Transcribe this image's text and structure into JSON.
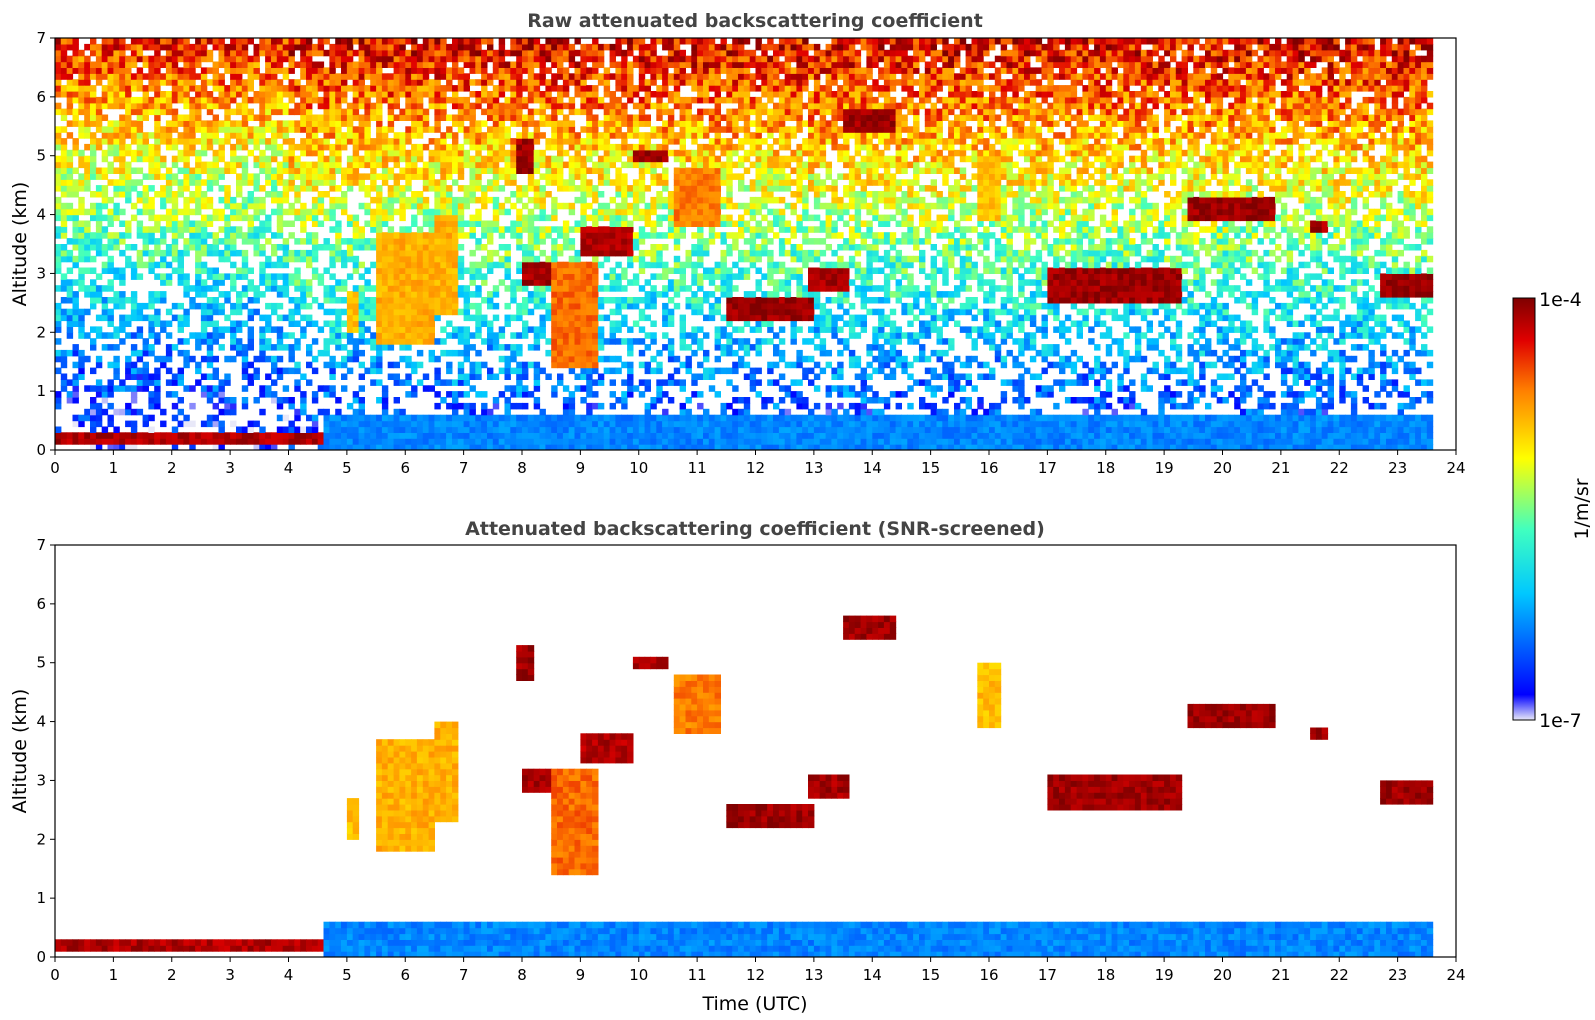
{
  "chart_data": [
    {
      "type": "heatmap",
      "title": "Raw attenuated backscattering coefficient",
      "xlabel": "",
      "ylabel": "Altitude (km)",
      "xlim": [
        0,
        24
      ],
      "ylim": [
        0,
        7
      ],
      "xticks": [
        "0",
        "1",
        "2",
        "3",
        "4",
        "5",
        "6",
        "7",
        "8",
        "9",
        "10",
        "11",
        "12",
        "13",
        "14",
        "15",
        "16",
        "17",
        "18",
        "19",
        "20",
        "21",
        "22",
        "23",
        "24"
      ],
      "yticks": [
        "0",
        "1",
        "2",
        "3",
        "4",
        "5",
        "6",
        "7"
      ],
      "data_end_time": 23.6,
      "features": [
        {
          "name": "surface layer",
          "t0": 0.0,
          "t1": 4.6,
          "alt_bottom": 0.05,
          "alt_top": 0.25,
          "level": 0.95
        },
        {
          "name": "boundary layer",
          "t0": 4.6,
          "t1": 23.6,
          "alt_bottom": 0.0,
          "alt_top": 0.55,
          "level": 0.22
        },
        {
          "name": "cloud",
          "t0": 7.9,
          "t1": 8.2,
          "alt_bottom": 4.7,
          "alt_top": 5.3,
          "level": 0.97
        },
        {
          "name": "cloud",
          "t0": 9.9,
          "t1": 10.5,
          "alt_bottom": 4.9,
          "alt_top": 5.1,
          "level": 0.97
        },
        {
          "name": "cloud",
          "t0": 13.5,
          "t1": 14.4,
          "alt_bottom": 5.4,
          "alt_top": 5.8,
          "level": 0.97
        },
        {
          "name": "cloud",
          "t0": 9.0,
          "t1": 9.9,
          "alt_bottom": 3.3,
          "alt_top": 3.8,
          "level": 0.95
        },
        {
          "name": "cloud",
          "t0": 8.0,
          "t1": 8.5,
          "alt_bottom": 2.8,
          "alt_top": 3.2,
          "level": 0.96
        },
        {
          "name": "cloud",
          "t0": 8.5,
          "t1": 9.3,
          "alt_bottom": 1.4,
          "alt_top": 3.2,
          "level": 0.8
        },
        {
          "name": "cloud",
          "t0": 11.5,
          "t1": 13.0,
          "alt_bottom": 2.2,
          "alt_top": 2.6,
          "level": 0.97
        },
        {
          "name": "cloud",
          "t0": 12.9,
          "t1": 13.6,
          "alt_bottom": 2.7,
          "alt_top": 3.1,
          "level": 0.96
        },
        {
          "name": "cloud",
          "t0": 17.0,
          "t1": 19.3,
          "alt_bottom": 2.5,
          "alt_top": 3.1,
          "level": 0.97
        },
        {
          "name": "cloud",
          "t0": 19.4,
          "t1": 20.9,
          "alt_bottom": 3.9,
          "alt_top": 4.3,
          "level": 0.97
        },
        {
          "name": "cloud",
          "t0": 21.5,
          "t1": 21.8,
          "alt_bottom": 3.7,
          "alt_top": 3.9,
          "level": 0.96
        },
        {
          "name": "cloud",
          "t0": 22.7,
          "t1": 23.6,
          "alt_bottom": 2.6,
          "alt_top": 3.0,
          "level": 0.97
        },
        {
          "name": "aerosol",
          "t0": 5.0,
          "t1": 5.2,
          "alt_bottom": 2.0,
          "alt_top": 2.7,
          "level": 0.7
        },
        {
          "name": "aerosol",
          "t0": 5.5,
          "t1": 6.5,
          "alt_bottom": 1.8,
          "alt_top": 3.7,
          "level": 0.72
        },
        {
          "name": "aerosol",
          "t0": 6.5,
          "t1": 6.9,
          "alt_bottom": 2.3,
          "alt_top": 4.0,
          "level": 0.72
        },
        {
          "name": "aerosol",
          "t0": 10.6,
          "t1": 11.4,
          "alt_bottom": 3.8,
          "alt_top": 4.8,
          "level": 0.78
        },
        {
          "name": "aerosol",
          "t0": 15.8,
          "t1": 16.2,
          "alt_bottom": 3.9,
          "alt_top": 5.0,
          "level": 0.7
        }
      ]
    },
    {
      "type": "heatmap",
      "title": "Attenuated backscattering coefficient (SNR-screened)",
      "xlabel": "Time (UTC)",
      "ylabel": "Altitude (km)",
      "xlim": [
        0,
        24
      ],
      "ylim": [
        0,
        7
      ],
      "xticks": [
        "0",
        "1",
        "2",
        "3",
        "4",
        "5",
        "6",
        "7",
        "8",
        "9",
        "10",
        "11",
        "12",
        "13",
        "14",
        "15",
        "16",
        "17",
        "18",
        "19",
        "20",
        "21",
        "22",
        "23",
        "24"
      ],
      "yticks": [
        "0",
        "1",
        "2",
        "3",
        "4",
        "5",
        "6",
        "7"
      ],
      "data_end_time": 23.6,
      "screened": true
    }
  ],
  "colorbar": {
    "label": "1/m/sr",
    "max_label": "1e-4",
    "min_label": "1e-7",
    "colormap": [
      "#e8e8f8",
      "#0000ff",
      "#00c8ff",
      "#40ffc0",
      "#ffff00",
      "#ff8000",
      "#e00000",
      "#7f0000"
    ]
  }
}
